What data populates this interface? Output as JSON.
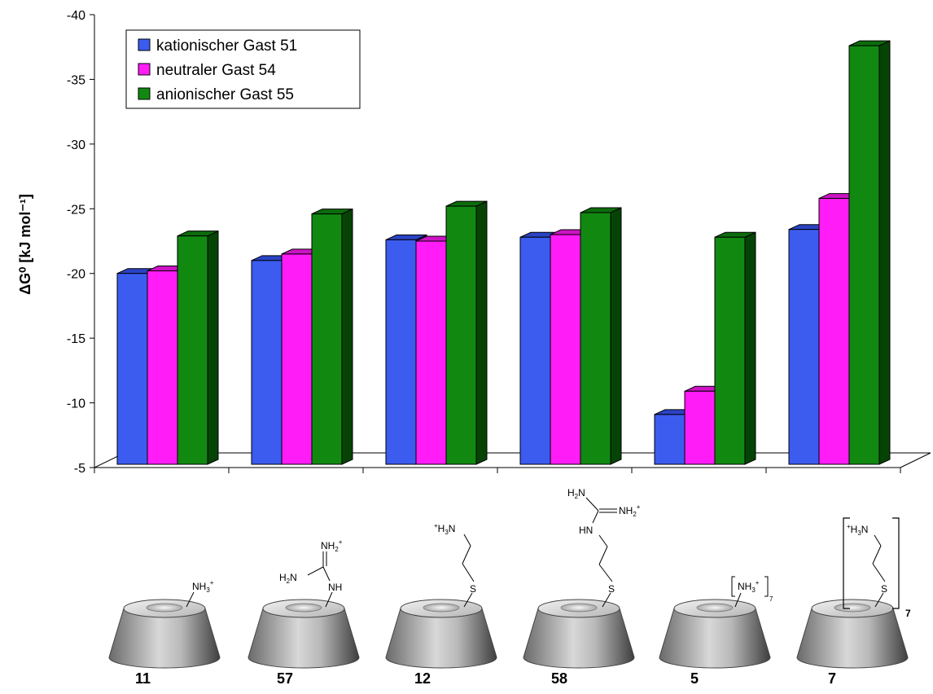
{
  "colors": {
    "series": [
      {
        "front": "#3c5cf0",
        "top": "#2a43c4",
        "side": "#1b2c88"
      },
      {
        "front": "#ff1cf6",
        "top": "#cc14c4",
        "side": "#8a0a86"
      },
      {
        "front": "#118911",
        "top": "#0c6c0c",
        "side": "#064406"
      }
    ]
  },
  "chart_data": {
    "type": "bar",
    "ylabel": "ΔG⁰ [kJ mol⁻¹]",
    "ylim": [
      -5,
      -40
    ],
    "yticks": [
      "-5",
      "-10",
      "-15",
      "-20",
      "-25",
      "-30",
      "-35",
      "-40"
    ],
    "ytick_values": [
      -5,
      -10,
      -15,
      -20,
      -25,
      -30,
      -35,
      -40
    ],
    "legend_position": "top-left",
    "categories": [
      "11",
      "57",
      "12",
      "58",
      "5",
      "7"
    ],
    "series": [
      {
        "name": "kationischer Gast 51",
        "values": [
          -20.0,
          -21.0,
          -22.6,
          -22.8,
          -9.1,
          -23.4
        ]
      },
      {
        "name": "neutraler Gast 54",
        "values": [
          -20.2,
          -21.5,
          -22.5,
          -23.0,
          -10.9,
          -25.8
        ]
      },
      {
        "name": "anionischer Gast 55",
        "values": [
          -22.9,
          -24.6,
          -25.2,
          -24.7,
          -22.8,
          -37.6
        ]
      }
    ]
  },
  "structures": {
    "s11": {
      "nh3": "NH",
      "sub3": "3",
      "plus": "+"
    },
    "s57": {
      "nh2": "NH",
      "sub2": "2",
      "plus": "+",
      "h2n": "H",
      "h2n_sub": "2",
      "h2n_n": "N",
      "nh": "NH"
    },
    "s12": {
      "plus": "+",
      "h3n": "H",
      "sub3": "3",
      "n": "N",
      "s": "S"
    },
    "s58": {
      "h2n": "H",
      "h2n_sub": "2",
      "h2n_n": "N",
      "nh2": "NH",
      "sub2": "2",
      "plus": "+",
      "hn": "HN",
      "s": "S"
    },
    "s5": {
      "nh3": "NH",
      "sub3": "3",
      "plus": "+",
      "sub7": "7"
    },
    "s7": {
      "plus": "+",
      "h3n": "H",
      "sub3": "3",
      "n": "N",
      "s": "S",
      "sub7": "7"
    }
  }
}
